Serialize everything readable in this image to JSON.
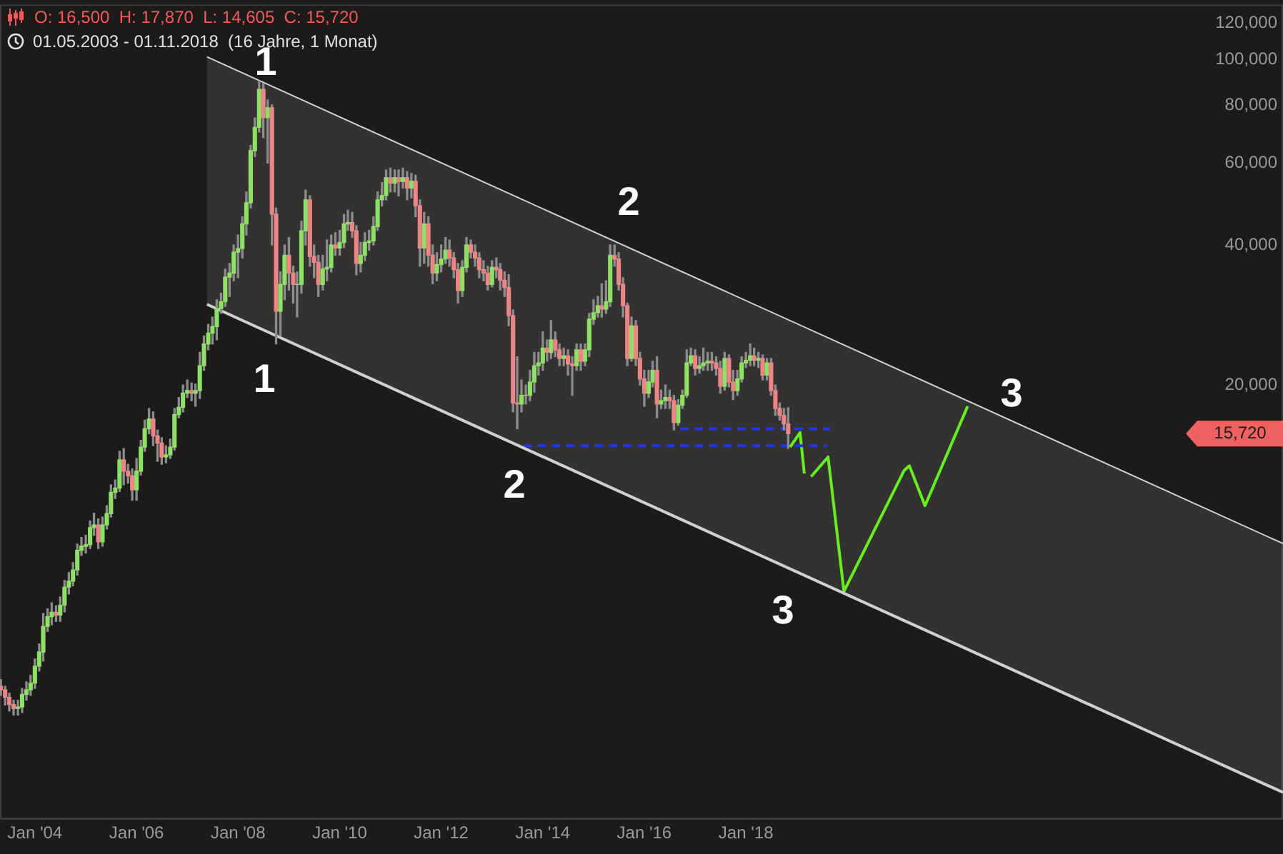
{
  "chart_data": {
    "type": "candlestick",
    "title": "O: 16,500  H: 17,870  L: 14,605  C: 15,720",
    "subtitle": "01.05.2003 - 01.11.2018  (16 Jahre, 1 Monat)",
    "x": [
      "2003-05",
      "2003-06",
      "2003-07",
      "2003-08",
      "2003-09",
      "2003-10",
      "2003-11",
      "2003-12",
      "2004-01",
      "2004-02",
      "2004-03",
      "2004-04",
      "2004-05",
      "2004-06",
      "2004-07",
      "2004-08",
      "2004-09",
      "2004-10",
      "2004-11",
      "2004-12",
      "2005-01",
      "2005-02",
      "2005-03",
      "2005-04",
      "2005-05",
      "2005-06",
      "2005-07",
      "2005-08",
      "2005-09",
      "2005-10",
      "2005-11",
      "2005-12",
      "2006-01",
      "2006-02",
      "2006-03",
      "2006-04",
      "2006-05",
      "2006-06",
      "2006-07",
      "2006-08",
      "2006-09",
      "2006-10",
      "2006-11",
      "2006-12",
      "2007-01",
      "2007-02",
      "2007-03",
      "2007-04",
      "2007-05",
      "2007-06",
      "2007-07",
      "2007-08",
      "2007-09",
      "2007-10",
      "2007-11",
      "2007-12",
      "2008-01",
      "2008-02",
      "2008-03",
      "2008-04",
      "2008-05",
      "2008-06",
      "2008-07",
      "2008-08",
      "2008-09",
      "2008-10",
      "2008-11",
      "2008-12",
      "2009-01",
      "2009-02",
      "2009-03",
      "2009-04",
      "2009-05",
      "2009-06",
      "2009-07",
      "2009-08",
      "2009-09",
      "2009-10",
      "2009-11",
      "2009-12",
      "2010-01",
      "2010-02",
      "2010-03",
      "2010-04",
      "2010-05",
      "2010-06",
      "2010-07",
      "2010-08",
      "2010-09",
      "2010-10",
      "2010-11",
      "2010-12",
      "2011-01",
      "2011-02",
      "2011-03",
      "2011-04",
      "2011-05",
      "2011-06",
      "2011-07",
      "2011-08",
      "2011-09",
      "2011-10",
      "2011-11",
      "2011-12",
      "2012-01",
      "2012-02",
      "2012-03",
      "2012-04",
      "2012-05",
      "2012-06",
      "2012-07",
      "2012-08",
      "2012-09",
      "2012-10",
      "2012-11",
      "2012-12",
      "2013-01",
      "2013-02",
      "2013-03",
      "2013-04",
      "2013-05",
      "2013-06",
      "2013-07",
      "2013-08",
      "2013-09",
      "2013-10",
      "2013-11",
      "2013-12",
      "2014-01",
      "2014-02",
      "2014-03",
      "2014-04",
      "2014-05",
      "2014-06",
      "2014-07",
      "2014-08",
      "2014-09",
      "2014-10",
      "2014-11",
      "2014-12",
      "2015-01",
      "2015-02",
      "2015-03",
      "2015-04",
      "2015-05",
      "2015-06",
      "2015-07",
      "2015-08",
      "2015-09",
      "2015-10",
      "2015-11",
      "2015-12",
      "2016-01",
      "2016-02",
      "2016-03",
      "2016-04",
      "2016-05",
      "2016-06",
      "2016-07",
      "2016-08",
      "2016-09",
      "2016-10",
      "2016-11",
      "2016-12",
      "2017-01",
      "2017-02",
      "2017-03",
      "2017-04",
      "2017-05",
      "2017-06",
      "2017-07",
      "2017-08",
      "2017-09",
      "2017-10",
      "2017-11",
      "2017-12",
      "2018-01",
      "2018-02",
      "2018-03",
      "2018-04",
      "2018-05",
      "2018-06",
      "2018-07",
      "2018-08",
      "2018-09",
      "2018-10",
      "2018-11"
    ],
    "ohlc": [
      [
        4500,
        4650,
        4300,
        4420
      ],
      [
        4420,
        4500,
        4100,
        4260
      ],
      [
        4260,
        4350,
        3980,
        4110
      ],
      [
        4110,
        4200,
        3900,
        4030
      ],
      [
        4030,
        4200,
        3900,
        4060
      ],
      [
        4060,
        4450,
        3950,
        4320
      ],
      [
        4320,
        4600,
        4200,
        4420
      ],
      [
        4420,
        4750,
        4300,
        4570
      ],
      [
        4570,
        5150,
        4450,
        4970
      ],
      [
        4970,
        5550,
        4850,
        5330
      ],
      [
        5330,
        6450,
        5100,
        6050
      ],
      [
        6050,
        6600,
        5900,
        6350
      ],
      [
        6350,
        6800,
        6100,
        6490
      ],
      [
        6490,
        6700,
        6200,
        6400
      ],
      [
        6400,
        7000,
        6200,
        6720
      ],
      [
        6720,
        7600,
        6500,
        7350
      ],
      [
        7350,
        7900,
        7100,
        7570
      ],
      [
        7570,
        8300,
        7400,
        8000
      ],
      [
        8000,
        9100,
        7800,
        8820
      ],
      [
        8820,
        9400,
        8600,
        9000
      ],
      [
        9000,
        9500,
        8700,
        9070
      ],
      [
        9070,
        10200,
        8900,
        9870
      ],
      [
        9870,
        10600,
        9500,
        10000
      ],
      [
        10000,
        10300,
        8900,
        9200
      ],
      [
        9200,
        10400,
        9000,
        10000
      ],
      [
        10000,
        11000,
        9800,
        10580
      ],
      [
        10580,
        12200,
        10400,
        11750
      ],
      [
        11750,
        12500,
        11400,
        12000
      ],
      [
        12000,
        14400,
        11800,
        13800
      ],
      [
        13800,
        14600,
        12200,
        13050
      ],
      [
        13050,
        13500,
        12300,
        12750
      ],
      [
        12750,
        13200,
        11300,
        11900
      ],
      [
        11900,
        13900,
        11300,
        13050
      ],
      [
        13050,
        15200,
        12800,
        14700
      ],
      [
        14700,
        16800,
        14400,
        16100
      ],
      [
        16100,
        17800,
        15700,
        16900
      ],
      [
        16900,
        17500,
        14800,
        15550
      ],
      [
        15550,
        16000,
        13700,
        15000
      ],
      [
        15000,
        15400,
        13500,
        14000
      ],
      [
        14000,
        14800,
        13600,
        14150
      ],
      [
        14150,
        15300,
        13900,
        14700
      ],
      [
        14700,
        17800,
        14500,
        17270
      ],
      [
        17270,
        18800,
        17000,
        17900
      ],
      [
        17900,
        20000,
        17500,
        19200
      ],
      [
        19200,
        20500,
        18800,
        19450
      ],
      [
        19450,
        20200,
        18500,
        19200
      ],
      [
        19200,
        20100,
        18000,
        19450
      ],
      [
        19450,
        23500,
        18700,
        22000
      ],
      [
        22000,
        25500,
        21500,
        24500
      ],
      [
        24500,
        27000,
        23800,
        25850
      ],
      [
        25850,
        28000,
        24500,
        26700
      ],
      [
        26700,
        30500,
        25000,
        29200
      ],
      [
        29200,
        31500,
        28500,
        30200
      ],
      [
        30200,
        35500,
        29500,
        34100
      ],
      [
        34100,
        36500,
        31000,
        34800
      ],
      [
        34800,
        40000,
        33500,
        38600
      ],
      [
        38600,
        42000,
        34000,
        39300
      ],
      [
        39300,
        46000,
        37500,
        44400
      ],
      [
        44400,
        52000,
        42000,
        49300
      ],
      [
        49300,
        65500,
        48000,
        63800
      ],
      [
        63800,
        75000,
        62000,
        71600
      ],
      [
        71600,
        90000,
        70000,
        86400
      ],
      [
        86400,
        89000,
        68000,
        75100
      ],
      [
        75100,
        82000,
        60000,
        78900
      ],
      [
        78900,
        80000,
        40000,
        46600
      ],
      [
        46600,
        48000,
        24500,
        28800
      ],
      [
        28800,
        35000,
        25500,
        32900
      ],
      [
        32900,
        40000,
        30500,
        38000
      ],
      [
        38000,
        41500,
        32000,
        34800
      ],
      [
        34800,
        36000,
        30000,
        32900
      ],
      [
        32900,
        35000,
        28000,
        32900
      ],
      [
        32900,
        45000,
        31500,
        42900
      ],
      [
        42900,
        52500,
        40000,
        50000
      ],
      [
        50000,
        51000,
        36000,
        37800
      ],
      [
        37800,
        40000,
        34000,
        36700
      ],
      [
        36700,
        38000,
        31000,
        32900
      ],
      [
        32900,
        38000,
        32000,
        35500
      ],
      [
        35500,
        41000,
        33500,
        35800
      ],
      [
        35800,
        42000,
        35000,
        40000
      ],
      [
        40000,
        42500,
        38000,
        39400
      ],
      [
        39400,
        43000,
        38000,
        40500
      ],
      [
        40500,
        46500,
        39500,
        44400
      ],
      [
        44400,
        47500,
        43000,
        44700
      ],
      [
        44700,
        47000,
        41500,
        42900
      ],
      [
        42900,
        44000,
        34500,
        36500
      ],
      [
        36500,
        40500,
        35000,
        38000
      ],
      [
        38000,
        42500,
        37000,
        40500
      ],
      [
        40500,
        43000,
        39000,
        40800
      ],
      [
        40800,
        46000,
        40000,
        43800
      ],
      [
        43800,
        52000,
        43000,
        50000
      ],
      [
        50000,
        54500,
        48500,
        51100
      ],
      [
        51100,
        58000,
        50000,
        55800
      ],
      [
        55800,
        58500,
        52000,
        54300
      ],
      [
        54300,
        58000,
        52000,
        55800
      ],
      [
        55800,
        58000,
        51000,
        54800
      ],
      [
        54800,
        58500,
        53000,
        55800
      ],
      [
        55800,
        57500,
        50000,
        53000
      ],
      [
        53000,
        57000,
        50500,
        54800
      ],
      [
        54800,
        56500,
        46000,
        48600
      ],
      [
        48600,
        50000,
        36000,
        39400
      ],
      [
        39400,
        47000,
        36500,
        44400
      ],
      [
        44400,
        46000,
        36000,
        38000
      ],
      [
        38000,
        40000,
        33000,
        34800
      ],
      [
        34800,
        38500,
        33500,
        36300
      ],
      [
        36300,
        40000,
        35000,
        37300
      ],
      [
        37300,
        41500,
        36500,
        39000
      ],
      [
        39000,
        41000,
        36000,
        37500
      ],
      [
        37500,
        38500,
        34000,
        35400
      ],
      [
        35400,
        36500,
        30000,
        31900
      ],
      [
        31900,
        37000,
        31000,
        35800
      ],
      [
        35800,
        41500,
        35000,
        40000
      ],
      [
        40000,
        41000,
        37500,
        38600
      ],
      [
        38600,
        40000,
        36000,
        37500
      ],
      [
        37500,
        38500,
        34000,
        35400
      ],
      [
        35400,
        37000,
        33500,
        34800
      ],
      [
        34800,
        36000,
        32000,
        32900
      ],
      [
        32900,
        37000,
        32500,
        35800
      ],
      [
        35800,
        37500,
        34000,
        35400
      ],
      [
        35400,
        36500,
        32000,
        33600
      ],
      [
        33600,
        35000,
        31000,
        32400
      ],
      [
        32400,
        34500,
        26800,
        28200
      ],
      [
        28200,
        29000,
        17500,
        18300
      ],
      [
        18300,
        23000,
        16100,
        18200
      ],
      [
        18200,
        20500,
        17500,
        19000
      ],
      [
        19000,
        20000,
        18200,
        19000
      ],
      [
        19000,
        21500,
        18500,
        20300
      ],
      [
        20300,
        23500,
        19300,
        22000
      ],
      [
        22000,
        23500,
        21000,
        22300
      ],
      [
        22300,
        26000,
        21500,
        24000
      ],
      [
        24000,
        25000,
        22500,
        23500
      ],
      [
        23500,
        27500,
        22800,
        25000
      ],
      [
        25000,
        26000,
        23000,
        23800
      ],
      [
        23800,
        24500,
        22000,
        22800
      ],
      [
        22800,
        24000,
        22000,
        23100
      ],
      [
        23100,
        23800,
        21000,
        22200
      ],
      [
        22200,
        23000,
        19000,
        22000
      ],
      [
        22000,
        24500,
        21500,
        23800
      ],
      [
        23800,
        24500,
        21500,
        22500
      ],
      [
        22500,
        24500,
        22000,
        23800
      ],
      [
        23800,
        28500,
        23000,
        27700
      ],
      [
        27700,
        30500,
        27000,
        28600
      ],
      [
        28600,
        31000,
        28000,
        29600
      ],
      [
        29600,
        33000,
        28000,
        29100
      ],
      [
        29100,
        33500,
        28500,
        30200
      ],
      [
        30200,
        40000,
        29500,
        38000
      ],
      [
        38000,
        40000,
        36000,
        37300
      ],
      [
        37300,
        38500,
        32000,
        32900
      ],
      [
        32900,
        34000,
        28000,
        29600
      ],
      [
        29600,
        30000,
        22000,
        22800
      ],
      [
        22800,
        28000,
        22500,
        26800
      ],
      [
        26800,
        27500,
        22000,
        22800
      ],
      [
        22800,
        23500,
        20000,
        20600
      ],
      [
        20600,
        21500,
        18000,
        19200
      ],
      [
        19200,
        21500,
        18800,
        20300
      ],
      [
        20300,
        22500,
        19800,
        21500
      ],
      [
        21500,
        23000,
        17000,
        18200
      ],
      [
        18200,
        19500,
        17800,
        18500
      ],
      [
        18500,
        20000,
        17800,
        18800
      ],
      [
        18800,
        19500,
        17800,
        18500
      ],
      [
        18500,
        19000,
        16000,
        16600
      ],
      [
        16600,
        18600,
        16400,
        18100
      ],
      [
        18100,
        19500,
        17800,
        19000
      ],
      [
        19000,
        23800,
        18800,
        22300
      ],
      [
        22300,
        24000,
        22000,
        23100
      ],
      [
        23100,
        23800,
        21000,
        21700
      ],
      [
        21700,
        23000,
        21200,
        22000
      ],
      [
        22000,
        24000,
        21500,
        22300
      ],
      [
        22300,
        23500,
        21500,
        22500
      ],
      [
        22500,
        23500,
        21500,
        22300
      ],
      [
        22300,
        23000,
        21000,
        21700
      ],
      [
        21700,
        22500,
        19200,
        19860
      ],
      [
        19860,
        23500,
        19500,
        22800
      ],
      [
        22800,
        23200,
        19800,
        20300
      ],
      [
        20300,
        21500,
        18600,
        19450
      ],
      [
        19450,
        21500,
        19000,
        20600
      ],
      [
        20600,
        23000,
        20300,
        22300
      ],
      [
        22300,
        23500,
        21800,
        22600
      ],
      [
        22600,
        24500,
        22000,
        23100
      ],
      [
        23100,
        24000,
        22000,
        22600
      ],
      [
        22600,
        23500,
        21800,
        22800
      ],
      [
        22800,
        23200,
        20500,
        21000
      ],
      [
        21000,
        22800,
        20500,
        22300
      ],
      [
        22300,
        22800,
        19000,
        19450
      ],
      [
        19450,
        20000,
        17200,
        17800
      ],
      [
        17800,
        18300,
        16800,
        17200
      ],
      [
        17200,
        17800,
        16000,
        16500
      ],
      [
        16500,
        17870,
        14605,
        15720
      ]
    ],
    "series": [
      {
        "type": "line",
        "color": "#d0d0d0",
        "x": [
          "2007-05-23",
          "2028-07-30"
        ],
        "values": [
          101500,
          9120
        ],
        "lower": [
          29800,
          2660
        ],
        "upper": [
          101500,
          9120
        ]
      },
      {
        "type": "line",
        "color": "#d0d0d0",
        "x": [
          "2007-05-23",
          "2028-07-30"
        ],
        "values": [
          29800,
          2660
        ]
      },
      {
        "type": "line",
        "color": "#1f35f0",
        "line_style": "dashed",
        "x": [
          "2013-08-15",
          "2019-08-06"
        ],
        "values": [
          14800,
          14800
        ]
      },
      {
        "type": "line",
        "color": "#1f35f0",
        "line_style": "dashed",
        "x": [
          "2016-09-15",
          "2019-08-28"
        ],
        "values": [
          16100,
          16100
        ]
      },
      {
        "type": "line",
        "color": "#66ee22",
        "x": [
          "2018-11-15",
          "2019-01-25",
          "2019-02-25",
          "2019-03-20",
          "2019-04-15",
          "2019-08-15",
          "2019-12-07",
          "2021-02-12",
          "2021-03-22",
          "2021-07-12",
          "2022-05-15"
        ],
        "values": [
          14700,
          15800,
          12900,
          null,
          12700,
          14000,
          7200,
          13100,
          13400,
          11000,
          18000
        ]
      }
    ],
    "annotations": [
      "1",
      "1",
      "2",
      "2",
      "3",
      "3",
      "15,720"
    ],
    "xlim": [
      "2003-04-25",
      "2028-07-30"
    ],
    "xticks": [
      {
        "value": "2004-01",
        "label": "Jan '04"
      },
      {
        "value": "2006-01",
        "label": "Jan '06"
      },
      {
        "value": "2008-01",
        "label": "Jan '08"
      },
      {
        "value": "2010-01",
        "label": "Jan '10"
      },
      {
        "value": "2012-01",
        "label": "Jan '12"
      },
      {
        "value": "2014-01",
        "label": "Jan '14"
      },
      {
        "value": "2016-01",
        "label": "Jan '16"
      },
      {
        "value": "2018-01",
        "label": "Jan '18"
      }
    ],
    "ylim": [
      2330,
      131500
    ],
    "yticks": [
      {
        "value": 20000,
        "label": "20,000"
      },
      {
        "value": 40000,
        "label": "40,000"
      },
      {
        "value": 60000,
        "label": "60,000"
      },
      {
        "value": 80000,
        "label": "80,000"
      },
      {
        "value": 100000,
        "label": "100,000"
      },
      {
        "value": 120000,
        "label": "120,000"
      }
    ],
    "log": true,
    "grid": false,
    "legend": false
  }
}
